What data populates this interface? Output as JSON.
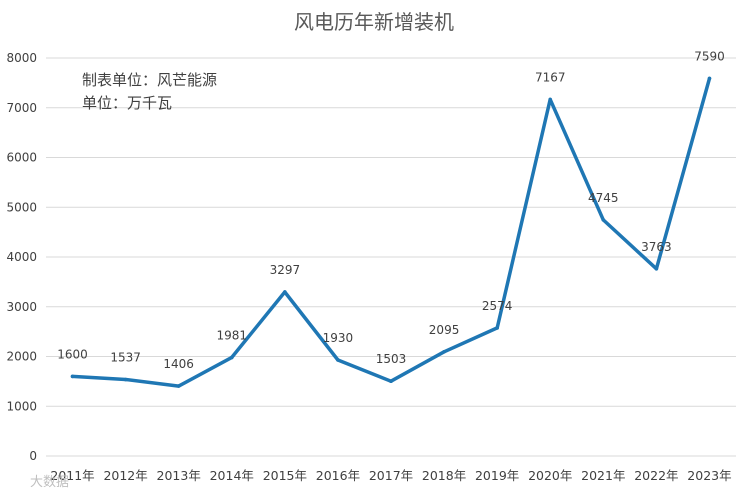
{
  "chart_data": {
    "type": "line",
    "title": "风电历年新增装机",
    "annotations": [
      "制表单位：风芒能源",
      "单位：万千瓦"
    ],
    "categories": [
      "2011年",
      "2012年",
      "2013年",
      "2014年",
      "2015年",
      "2016年",
      "2017年",
      "2018年",
      "2019年",
      "2020年",
      "2021年",
      "2022年",
      "2023年"
    ],
    "series": [
      {
        "values": [
          1600,
          1537,
          1406,
          1981,
          3297,
          1930,
          1503,
          2095,
          2574,
          7167,
          4745,
          3763,
          7590
        ]
      }
    ],
    "y_ticks": [
      "0",
      "1000",
      "2000",
      "3000",
      "4000",
      "5000",
      "6000",
      "7000",
      "8000"
    ],
    "ylim": [
      0,
      8000
    ],
    "grid": true,
    "data_labels": true,
    "line_color": "#1f77b4"
  },
  "watermark": "大数据"
}
